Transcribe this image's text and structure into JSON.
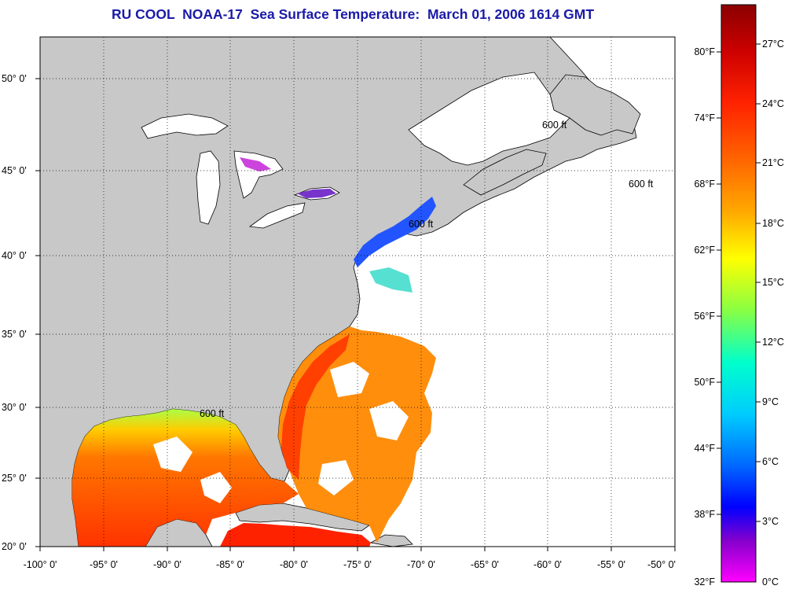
{
  "title": "RU COOL  NOAA-17  Sea Surface Temperature:  March 01, 2006 1614 GMT",
  "map": {
    "lon_ticks": [
      "-100° 0'",
      "-95° 0'",
      "-90° 0'",
      "-85° 0'",
      "-80° 0'",
      "-75° 0'",
      "-70° 0'",
      "-65° 0'",
      "-60° 0'",
      "-55° 0'",
      "-50° 0'"
    ],
    "lat_ticks": [
      "50° 0'",
      "45° 0'",
      "40° 0'",
      "35° 0'",
      "30° 0'",
      "25° 0'",
      "20° 0'"
    ],
    "contour_label": "600 ft",
    "colors": {
      "land": "#c8c8c8",
      "ocean_no_data": "#ffffff",
      "coast": "#000000",
      "gridline": "#000000"
    }
  },
  "colorbar": {
    "fahrenheit": [
      "80°F",
      "74°F",
      "68°F",
      "62°F",
      "56°F",
      "50°F",
      "44°F",
      "38°F",
      "32°F"
    ],
    "celsius": [
      "27°C",
      "24°C",
      "21°C",
      "18°C",
      "15°C",
      "12°C",
      "9°C",
      "6°C",
      "3°C",
      "0°C"
    ],
    "gradient_colors": [
      "#8b0000",
      "#cc0000",
      "#ff2200",
      "#ff6600",
      "#ffaa00",
      "#ffff00",
      "#88ff44",
      "#00ffcc",
      "#00ccff",
      "#0066ff",
      "#0000ff",
      "#8800cc",
      "#ff00ff"
    ]
  }
}
